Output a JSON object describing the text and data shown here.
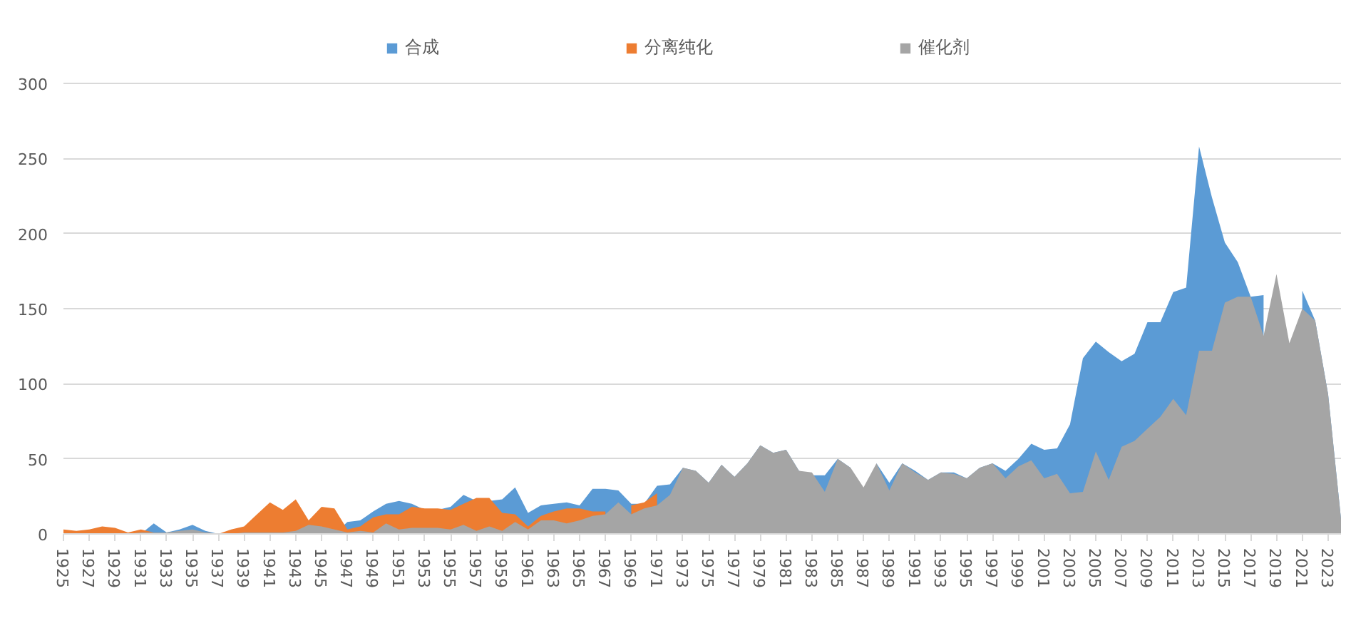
{
  "chart_data": {
    "type": "area",
    "x": [
      1925,
      1926,
      1927,
      1928,
      1929,
      1930,
      1931,
      1932,
      1933,
      1934,
      1935,
      1936,
      1937,
      1938,
      1939,
      1940,
      1941,
      1942,
      1943,
      1944,
      1945,
      1946,
      1947,
      1948,
      1949,
      1950,
      1951,
      1952,
      1953,
      1954,
      1955,
      1956,
      1957,
      1958,
      1959,
      1960,
      1961,
      1962,
      1963,
      1964,
      1965,
      1966,
      1967,
      1968,
      1969,
      1970,
      1971,
      1972,
      1973,
      1974,
      1975,
      1976,
      1977,
      1978,
      1979,
      1980,
      1981,
      1982,
      1983,
      1984,
      1985,
      1986,
      1987,
      1988,
      1989,
      1990,
      1991,
      1992,
      1993,
      1994,
      1995,
      1996,
      1997,
      1998,
      1999,
      2000,
      2001,
      2002,
      2003,
      2004,
      2005,
      2006,
      2007,
      2008,
      2009,
      2010,
      2011,
      2012,
      2013,
      2014,
      2015,
      2016,
      2017,
      2018,
      2019,
      2020,
      2021,
      2022,
      2023,
      2024
    ],
    "series": [
      {
        "name": "合成",
        "color": "#5b9bd5",
        "values": [
          0,
          0,
          0,
          0,
          0,
          0,
          0,
          7,
          1,
          3,
          6,
          2,
          0,
          0,
          0,
          0,
          0,
          0,
          0,
          0,
          0,
          0,
          8,
          9,
          15,
          20,
          22,
          20,
          16,
          16,
          18,
          26,
          22,
          22,
          23,
          31,
          14,
          19,
          20,
          21,
          19,
          30,
          30,
          29,
          20,
          20,
          32,
          33,
          44,
          42,
          34,
          46,
          38,
          47,
          59,
          54,
          56,
          42,
          39,
          39,
          50,
          44,
          null,
          47,
          34,
          47,
          42,
          36,
          41,
          41,
          37,
          44,
          47,
          42,
          50,
          60,
          56,
          57,
          73,
          117,
          128,
          121,
          115,
          120,
          141,
          141,
          161,
          164,
          258,
          224,
          194,
          181,
          158,
          159,
          null,
          null,
          162,
          142,
          93,
          10
        ]
      },
      {
        "name": "分离纯化",
        "color": "#ed7d31",
        "values": [
          3,
          2,
          3,
          5,
          4,
          1,
          3,
          1,
          1,
          1,
          1,
          1,
          0,
          3,
          5,
          13,
          21,
          16,
          23,
          9,
          18,
          17,
          3,
          5,
          11,
          13,
          13,
          18,
          17,
          17,
          16,
          20,
          24,
          24,
          14,
          13,
          5,
          12,
          15,
          17,
          17,
          15,
          15,
          null,
          19,
          21,
          27,
          null,
          null,
          null,
          null,
          null,
          null,
          null,
          null,
          null,
          null,
          null,
          null,
          null,
          null,
          null,
          null,
          null,
          null,
          null,
          null,
          null,
          null,
          null,
          null,
          null,
          null,
          null,
          null,
          null,
          null,
          null,
          null,
          null,
          null,
          null,
          null,
          null,
          null,
          null,
          null,
          null,
          null,
          null,
          null,
          null,
          null,
          null,
          null,
          null,
          null,
          null,
          null,
          null
        ]
      },
      {
        "name": "催化剂",
        "color": "#a5a5a5",
        "values": [
          0,
          0,
          0,
          0,
          0,
          0,
          1,
          1,
          1,
          2,
          3,
          1,
          0,
          0,
          1,
          1,
          1,
          1,
          2,
          6,
          5,
          3,
          1,
          2,
          1,
          7,
          3,
          4,
          4,
          4,
          3,
          6,
          2,
          5,
          2,
          8,
          3,
          9,
          9,
          7,
          9,
          12,
          13,
          21,
          13,
          17,
          19,
          26,
          44,
          42,
          34,
          46,
          38,
          47,
          59,
          54,
          56,
          42,
          41,
          28,
          50,
          44,
          31,
          47,
          29,
          47,
          41,
          36,
          41,
          40,
          37,
          44,
          47,
          37,
          45,
          49,
          37,
          40,
          27,
          28,
          55,
          36,
          58,
          62,
          70,
          78,
          90,
          79,
          122,
          122,
          154,
          158,
          158,
          132,
          173,
          127,
          150,
          142,
          93,
          10
        ]
      }
    ],
    "xlim": [
      1925,
      2024
    ],
    "xticks": [
      1925,
      1927,
      1929,
      1931,
      1933,
      1935,
      1937,
      1939,
      1941,
      1943,
      1945,
      1947,
      1949,
      1951,
      1953,
      1955,
      1957,
      1959,
      1961,
      1963,
      1965,
      1967,
      1969,
      1971,
      1973,
      1975,
      1977,
      1979,
      1981,
      1983,
      1985,
      1987,
      1989,
      1991,
      1993,
      1995,
      1997,
      1999,
      2001,
      2003,
      2005,
      2007,
      2009,
      2011,
      2013,
      2015,
      2017,
      2019,
      2021,
      2023
    ],
    "ylim": [
      0,
      300
    ],
    "yticks": [
      0,
      50,
      100,
      150,
      200,
      250,
      300
    ],
    "grid": "y",
    "legend": "top"
  }
}
